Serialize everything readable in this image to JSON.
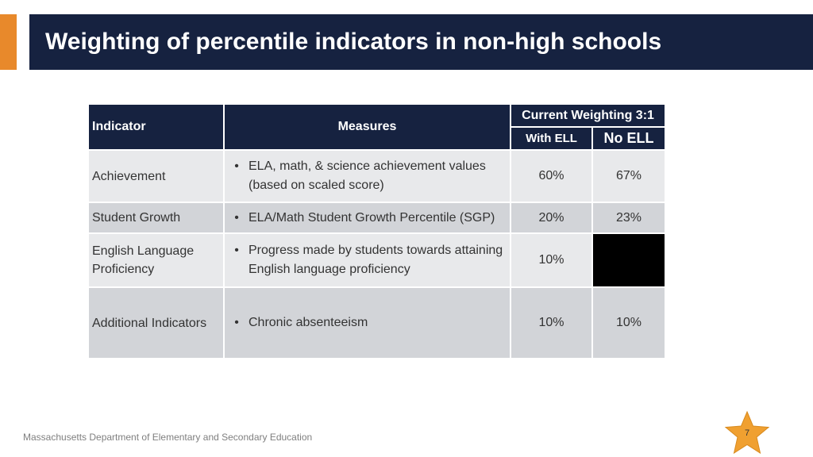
{
  "slide": {
    "title": "Weighting of percentile indicators in non-high schools",
    "footer": "Massachusetts Department of Elementary and Secondary Education",
    "page_number": "7",
    "colors": {
      "title_bg": "#162240",
      "accent": "#e8892b",
      "row_light": "#e8e9eb",
      "row_dark": "#d2d4d8",
      "star": "#f0a030"
    }
  },
  "table": {
    "headers": {
      "indicator": "Indicator",
      "measures": "Measures",
      "current_weighting": "Current Weighting 3:1",
      "with_ell": "With ELL",
      "no_ell": "No ELL"
    },
    "rows": [
      {
        "indicator": "Achievement",
        "bullet": "•",
        "measure": "ELA, math, & science achievement values (based on scaled score)",
        "with_ell": "60%",
        "no_ell": "67%"
      },
      {
        "indicator": "Student Growth",
        "bullet": "•",
        "measure": "ELA/Math Student Growth Percentile (SGP)",
        "with_ell": "20%",
        "no_ell": "23%"
      },
      {
        "indicator": "English Language Proficiency",
        "bullet": "•",
        "measure": "Progress made by students towards attaining English language proficiency",
        "with_ell": "10%",
        "no_ell": ""
      },
      {
        "indicator": "Additional Indicators",
        "bullet": "•",
        "measure": "Chronic absenteeism",
        "with_ell": "10%",
        "no_ell": "10%"
      }
    ]
  }
}
